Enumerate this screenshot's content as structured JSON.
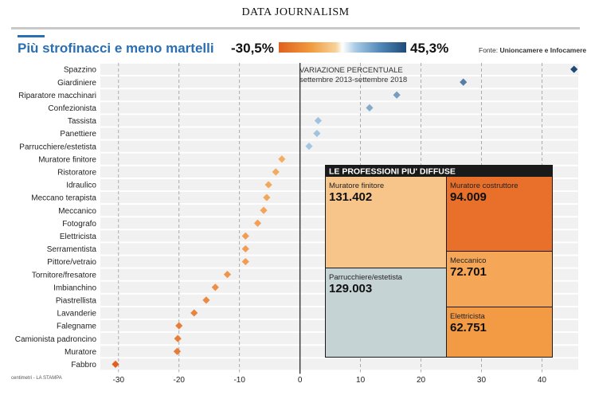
{
  "header": "DATA JOURNALISM",
  "title": "Più strofinacci e meno martelli",
  "legend": {
    "min_label": "-30,5%",
    "max_label": "45,3%"
  },
  "source": {
    "prefix": "Fonte: ",
    "name": "Unioncamere e Infocamere"
  },
  "footer": "centimetri - LA STAMPA",
  "colors": {
    "negative_strong": "#e0601e",
    "negative_light": "#f6b56b",
    "positive_light": "#a9cbe5",
    "positive_strong": "#1f4a78"
  },
  "chart_data": {
    "type": "scatter",
    "annotation": [
      "VARIAZIONE PERCENTUALE",
      "settembre 2013-settembre 2018"
    ],
    "xlim": [
      -33,
      46
    ],
    "xticks": [
      -30,
      -20,
      -10,
      0,
      10,
      20,
      30,
      40
    ],
    "categories": [
      "Spazzino",
      "Giardiniere",
      "Riparatore macchinari",
      "Confezionista",
      "Tassista",
      "Panettiere",
      "Parrucchiere/estetista",
      "Muratore finitore",
      "Ristoratore",
      "Idraulico",
      "Meccano terapista",
      "Meccanico",
      "Fotografo",
      "Elettricista",
      "Serramentista",
      "Pittore/vetraio",
      "Tornitore/fresatore",
      "Imbianchino",
      "Piastrellista",
      "Lavanderie",
      "Falegname",
      "Camionista padroncino",
      "Muratore",
      "Fabbro"
    ],
    "values": [
      45.3,
      27,
      16,
      11.5,
      3,
      2.8,
      1.5,
      -3,
      -4,
      -5.2,
      -5.5,
      -6,
      -7,
      -9,
      -9,
      -9,
      -12,
      -14,
      -15.5,
      -17.5,
      -20,
      -20.2,
      -20.3,
      -30.5
    ],
    "grid": true,
    "treemap": {
      "title": "LE PROFESSIONI PIU' DIFFUSE",
      "items": [
        {
          "label": "Muratore finitore",
          "value": "131.402",
          "color": "#f7c58a"
        },
        {
          "label": "Muratore costruttore",
          "value": "94.009",
          "color": "#e9702a"
        },
        {
          "label": "Parrucchiere/estetista",
          "value": "129.003",
          "color": "#c6d3d5"
        },
        {
          "label": "Meccanico",
          "value": "72.701",
          "color": "#f5a657"
        },
        {
          "label": "Elettricista",
          "value": "62.751",
          "color": "#f39a45"
        }
      ]
    }
  }
}
